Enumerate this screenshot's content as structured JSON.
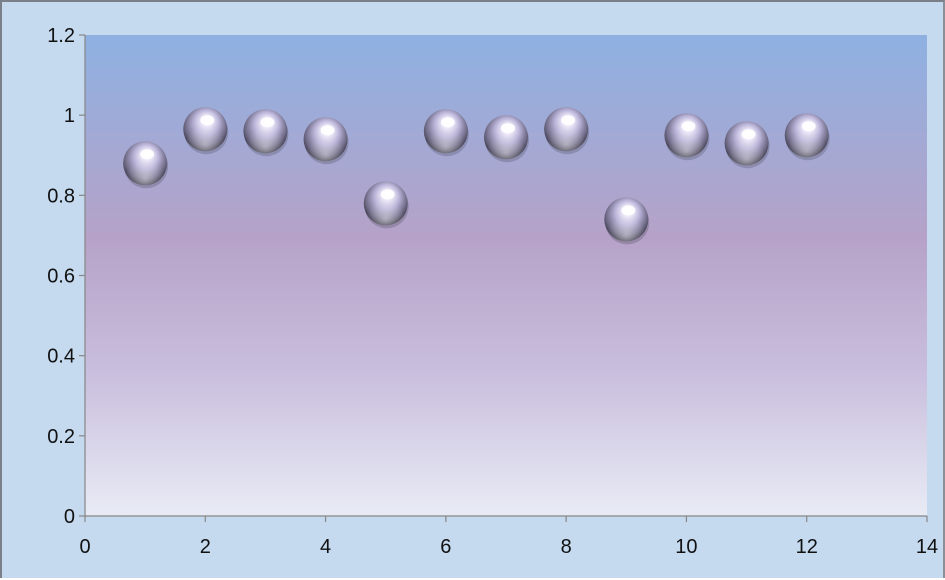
{
  "chart_data": {
    "type": "scatter",
    "title": "",
    "xlabel": "",
    "ylabel": "",
    "xlim": [
      0,
      14
    ],
    "ylim": [
      0,
      1.2
    ],
    "x_ticks": [
      "0",
      "2",
      "4",
      "6",
      "8",
      "10",
      "12",
      "14"
    ],
    "y_ticks": [
      "0",
      "0.2",
      "0.4",
      "0.6",
      "0.8",
      "1",
      "1.2"
    ],
    "grid": false,
    "legend": "none",
    "marker": "3d-sphere",
    "series": [
      {
        "x": [
          1,
          2,
          3,
          4,
          5,
          6,
          7,
          8,
          9,
          10,
          11,
          12
        ],
        "y": [
          0.88,
          0.965,
          0.96,
          0.94,
          0.78,
          0.96,
          0.945,
          0.965,
          0.74,
          0.95,
          0.93,
          0.95
        ]
      }
    ],
    "colors": {
      "frame_background": "#c5d9ef",
      "plot_gradient_top": "#8eb1e2",
      "plot_gradient_mid": "#b6a2c8",
      "plot_gradient_bottom": "#e8ebf5",
      "marker_color": "#b8b4d8"
    }
  }
}
